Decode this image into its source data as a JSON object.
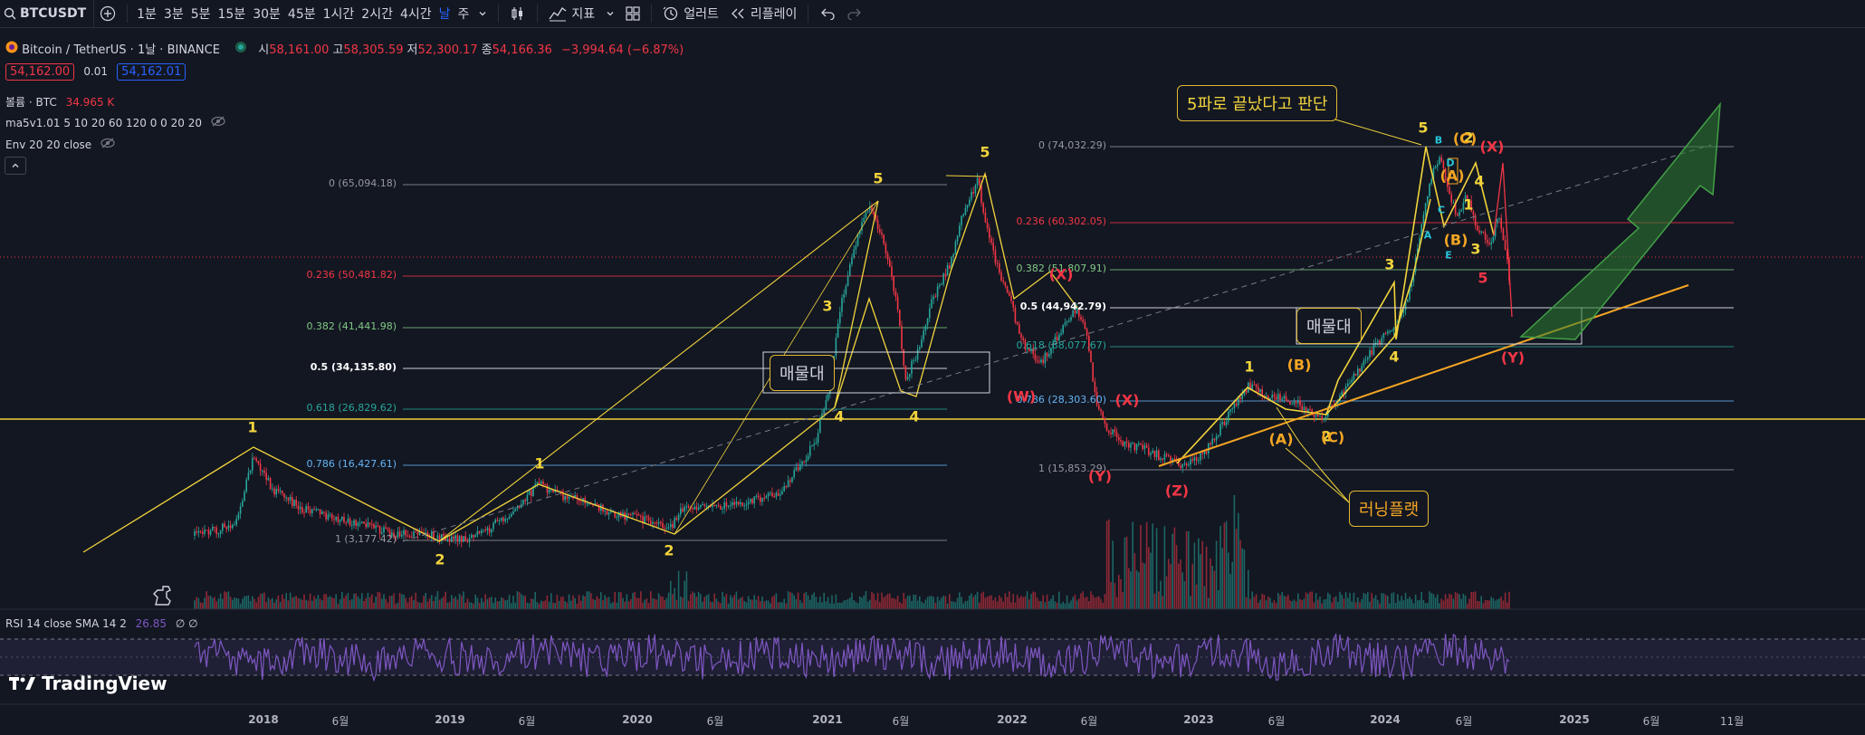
{
  "toolbar": {
    "symbol": "BTCUSDT",
    "intervals": [
      "1분",
      "3분",
      "5분",
      "15분",
      "30분",
      "45분",
      "1시간",
      "2시간",
      "4시간",
      "날",
      "주"
    ],
    "active_interval": "날",
    "indicators_label": "지표",
    "alert_label": "얼러트",
    "replay_label": "리플레이",
    "icons": [
      "add-icon",
      "chevron-down-icon",
      "candles-icon",
      "indicators-icon",
      "layout-grid-icon",
      "alert-icon",
      "replay-icon",
      "undo-icon",
      "redo-icon"
    ]
  },
  "legend": {
    "title": "Bitcoin / TetherUS · 1날 · BINANCE",
    "ohlc": [
      {
        "k": "시",
        "v": "58,161.00"
      },
      {
        "k": "고",
        "v": "58,305.59"
      },
      {
        "k": "저",
        "v": "52,300.17"
      },
      {
        "k": "종",
        "v": "54,166.36"
      }
    ],
    "change": "−3,994.64 (−6.87%)",
    "bid": "54,162.00",
    "spread": "0.01",
    "ask": "54,162.01",
    "volume_label": "볼륨 · BTC",
    "volume_value": "34.965 K",
    "ma_label": "ma5v1.01 5 10 20 60 120 0 0 20 20",
    "env_label": "Env 20 20 close"
  },
  "fib_left": [
    {
      "label": "0 (65,094.18)",
      "color": "#9598a1"
    },
    {
      "label": "0.236 (50,481.82)",
      "color": "#f23645"
    },
    {
      "label": "0.382 (41,441.98)",
      "color": "#81c784"
    },
    {
      "label": "0.5 (34,135.80)",
      "color": "#ffffff"
    },
    {
      "label": "0.618 (26,829.62)",
      "color": "#26a69a"
    },
    {
      "label": "0.786 (16,427.61)",
      "color": "#64b5f6"
    },
    {
      "label": "1 (3,177.42)",
      "color": "#9598a1"
    }
  ],
  "fib_right": [
    {
      "label": "0 (74,032.29)",
      "color": "#9598a1"
    },
    {
      "label": "0.236 (60,302.05)",
      "color": "#f23645"
    },
    {
      "label": "0.382 (51,807.91)",
      "color": "#81c784"
    },
    {
      "label": "0.5 (44,942.79)",
      "color": "#ffffff"
    },
    {
      "label": "0.618 (38,077.67)",
      "color": "#26a69a"
    },
    {
      "label": "0.786 (28,303.60)",
      "color": "#64b5f6"
    },
    {
      "label": "1 (15,853.29)",
      "color": "#9598a1"
    }
  ],
  "waves_yellow": [
    "1",
    "2",
    "1",
    "2",
    "3",
    "4",
    "5",
    "4",
    "5",
    "1",
    "2",
    "3",
    "4",
    "5",
    "1",
    "2",
    "3",
    "4"
  ],
  "waves_orange": [
    "(A)",
    "(B)",
    "(C)",
    "(A)",
    "(B)",
    "(C)"
  ],
  "waves_red": [
    "(W)",
    "(X)",
    "(Y)",
    "(X)",
    "(Z)",
    "(X)",
    "(Y)",
    "5"
  ],
  "waves_blue": [
    "A",
    "B",
    "C",
    "D",
    "E"
  ],
  "annotations": {
    "five_wave": "5파로 끝났다고 판단",
    "supply_left": "매물대",
    "supply_right": "매물대",
    "running_flat": "러닝플랫"
  },
  "rsi": {
    "label": "RSI 14 close SMA 14 2",
    "value": "26.85",
    "extra": "∅ ∅"
  },
  "xaxis": [
    "2018",
    "6월",
    "2019",
    "6월",
    "2020",
    "6월",
    "2021",
    "6월",
    "2022",
    "6월",
    "2023",
    "6월",
    "2024",
    "6월",
    "2025",
    "6월",
    "11월"
  ],
  "brand": "TradingView",
  "colors": {
    "background": "#131722",
    "up": "#26a69a",
    "down": "#f23645",
    "wave_yellow": "#f2d43c",
    "wave_orange": "#f5a623",
    "wave_red": "#f23645",
    "rsi": "#7e57c2"
  }
}
